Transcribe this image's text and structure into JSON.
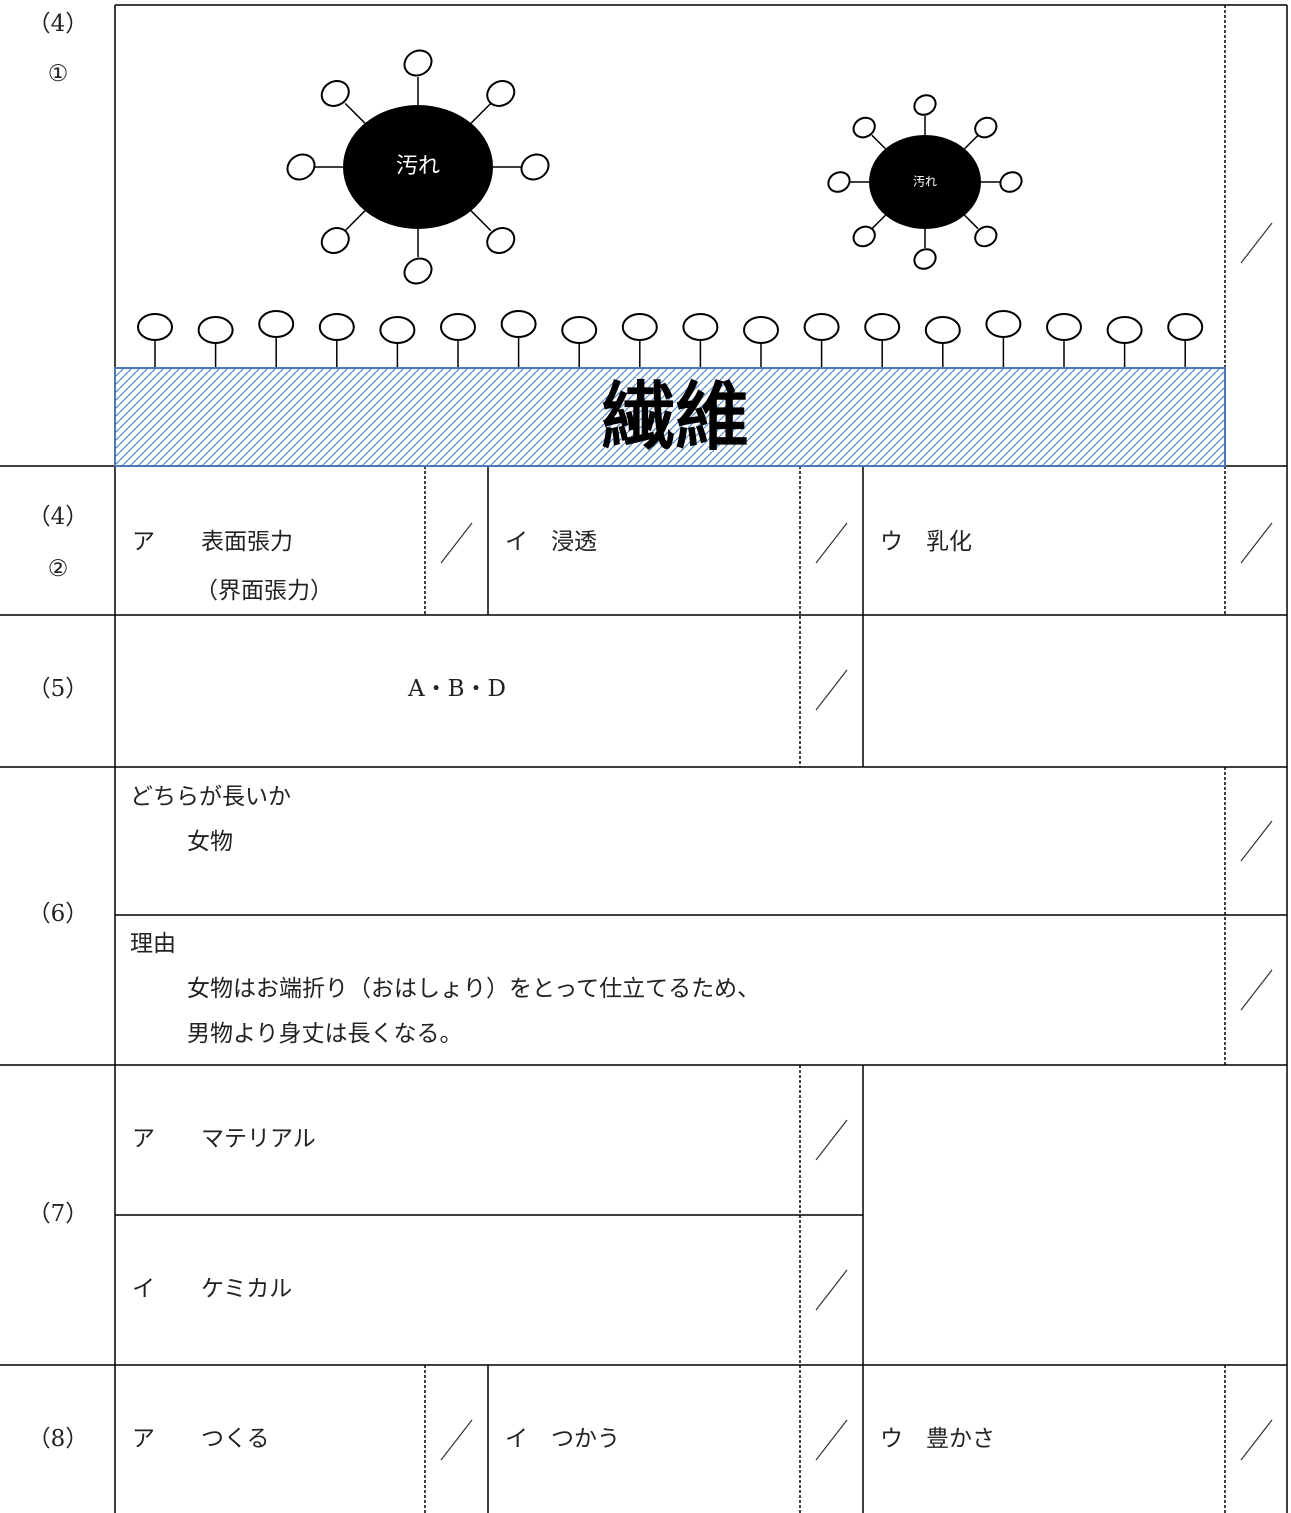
{
  "q4_1": {
    "label": [
      "（4）",
      "①"
    ],
    "diagram": {
      "dirt_large": "汚れ",
      "dirt_small": "汚れ",
      "fiber": "繊維"
    }
  },
  "q4_2": {
    "label": [
      "（4）",
      "②"
    ],
    "answers": [
      [
        "ア　　表面張力",
        "（界面張力）"
      ],
      [
        "イ　浸透"
      ],
      [
        "ウ　乳化"
      ]
    ]
  },
  "q5": {
    "label": "（5）",
    "answer": "A・B・D"
  },
  "q6": {
    "label": "（6）",
    "which": {
      "heading": "どちらが長いか",
      "answer": "女物"
    },
    "reason": {
      "heading": "理由",
      "lines": [
        "女物はお端折り（おはしょり）をとって仕立てるため、",
        "男物より身丈は長くなる。"
      ]
    }
  },
  "q7": {
    "label": "（7）",
    "answers": [
      "ア　　マテリアル",
      "イ　　ケミカル"
    ]
  },
  "q8": {
    "label": "（8）",
    "answers": [
      "ア　　つくる",
      "イ　つかう",
      "ウ　豊かさ"
    ]
  }
}
